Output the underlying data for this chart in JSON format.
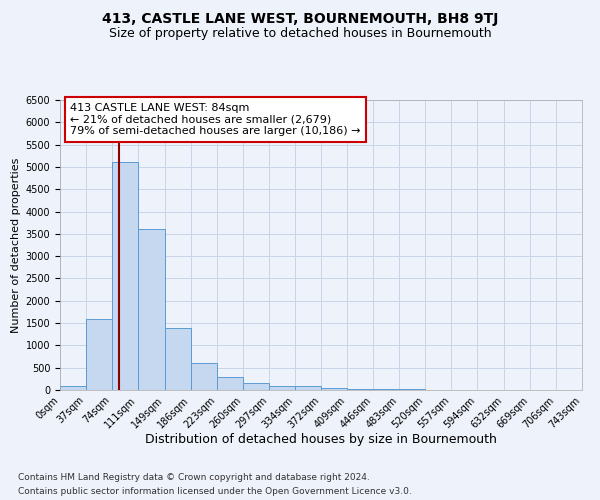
{
  "title": "413, CASTLE LANE WEST, BOURNEMOUTH, BH8 9TJ",
  "subtitle": "Size of property relative to detached houses in Bournemouth",
  "xlabel": "Distribution of detached houses by size in Bournemouth",
  "ylabel": "Number of detached properties",
  "footnote1": "Contains HM Land Registry data © Crown copyright and database right 2024.",
  "footnote2": "Contains public sector information licensed under the Open Government Licence v3.0.",
  "annotation_title": "413 CASTLE LANE WEST: 84sqm",
  "annotation_line1": "← 21% of detached houses are smaller (2,679)",
  "annotation_line2": "79% of semi-detached houses are larger (10,186) →",
  "property_size": 84,
  "bin_edges": [
    0,
    37,
    74,
    111,
    149,
    186,
    223,
    260,
    297,
    334,
    372,
    409,
    446,
    483,
    520,
    557,
    594,
    632,
    669,
    706,
    743
  ],
  "bar_heights": [
    100,
    1600,
    5100,
    3600,
    1400,
    600,
    300,
    150,
    100,
    80,
    50,
    30,
    20,
    15,
    10,
    8,
    6,
    5,
    4,
    3
  ],
  "bar_color": "#c5d8f0",
  "bar_edge_color": "#5b9bd5",
  "grid_color": "#c8d4e8",
  "vline_color": "#8b0000",
  "annotation_box_color": "#ffffff",
  "annotation_box_edge": "#cc0000",
  "ylim": [
    0,
    6500
  ],
  "yticks": [
    0,
    500,
    1000,
    1500,
    2000,
    2500,
    3000,
    3500,
    4000,
    4500,
    5000,
    5500,
    6000,
    6500
  ],
  "background_color": "#eef2fa",
  "title_fontsize": 10,
  "subtitle_fontsize": 9,
  "xlabel_fontsize": 9,
  "ylabel_fontsize": 8,
  "tick_fontsize": 7,
  "annotation_fontsize": 8,
  "footnote_fontsize": 6.5
}
